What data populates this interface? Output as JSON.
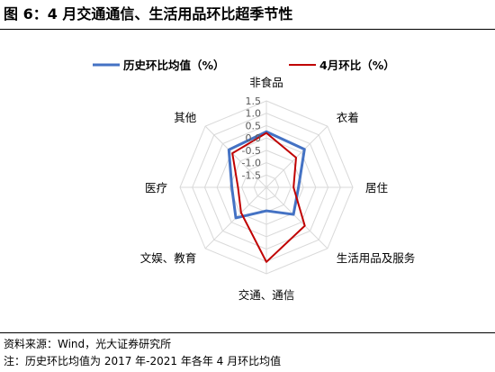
{
  "title": "图 6：4 月交通通信、生活用品环比超季节性",
  "chart_data": {
    "type": "radar",
    "categories": [
      "非食品",
      "衣着",
      "居住",
      "生活用品及服务",
      "交通、通信",
      "文娱、教育",
      "医疗",
      "其他"
    ],
    "ticks": [
      1.5,
      1.0,
      0.5,
      0.0,
      -0.5,
      -1.0,
      -1.5
    ],
    "tick_labels": [
      "1.5",
      "1.0",
      "0.5",
      "0.0",
      "-0.5",
      "-1.0",
      "-1.5"
    ],
    "rmin": -2.0,
    "rmax": 1.5,
    "grid": true,
    "legend_position": "top",
    "series": [
      {
        "name": "历史环比均值（%）",
        "color": "#4472C4",
        "values": [
          0.25,
          0.18,
          -0.7,
          -0.45,
          -1.05,
          -0.25,
          -0.6,
          0.15
        ]
      },
      {
        "name": "4月环比（%）",
        "color": "#C00000",
        "values": [
          0.2,
          -0.3,
          -0.9,
          0.2,
          1.02,
          -0.55,
          -0.85,
          -0.05
        ]
      }
    ]
  },
  "footer": {
    "source": "资料来源：Wind，光大证券研究所",
    "note": "注：历史环比均值为 2017 年-2021 年各年 4 月环比均值"
  }
}
